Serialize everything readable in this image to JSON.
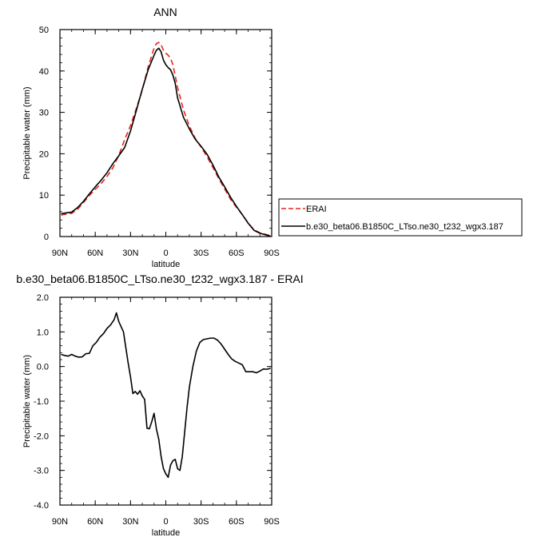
{
  "chart_data": [
    {
      "type": "line",
      "title": "ANN",
      "xlabel": "latitude",
      "ylabel": "Precipitable water (mm)",
      "x_tick_values": [
        90,
        60,
        30,
        0,
        -30,
        -60,
        -90
      ],
      "x_tick_labels": [
        "90N",
        "60N",
        "30N",
        "0",
        "30S",
        "60S",
        "90S"
      ],
      "xlim": [
        90,
        -90
      ],
      "ylim": [
        0,
        50
      ],
      "y_ticks": [
        0,
        10,
        20,
        30,
        40,
        50
      ],
      "y_tick_labels": [
        "0",
        "10",
        "20",
        "30",
        "40",
        "50"
      ],
      "grid": false,
      "legend_position": "right",
      "series": [
        {
          "name": "ERAI",
          "color": "#e8241c",
          "dash": "dashed",
          "x": [
            89,
            85,
            80,
            75,
            70,
            65,
            60,
            55,
            50,
            45,
            40,
            35,
            30,
            25,
            20,
            15,
            10,
            8,
            6,
            4,
            2,
            0,
            -2,
            -4,
            -6,
            -8,
            -10,
            -15,
            -20,
            -25,
            -30,
            -35,
            -40,
            -45,
            -50,
            -55,
            -60,
            -65,
            -70,
            -75,
            -80,
            -85,
            -89
          ],
          "y": [
            5.2,
            5.4,
            5.6,
            6.6,
            8.2,
            9.9,
            11.4,
            12.8,
            14.5,
            16.6,
            19.6,
            23.4,
            26.8,
            31.0,
            35.4,
            41.0,
            45.5,
            46.6,
            46.9,
            46.3,
            45.0,
            44.3,
            43.8,
            43.1,
            41.5,
            38.8,
            36.0,
            30.6,
            26.7,
            23.7,
            21.6,
            19.3,
            16.7,
            14.0,
            11.5,
            9.0,
            7.1,
            5.3,
            3.3,
            1.6,
            0.9,
            0.5,
            0.2
          ]
        },
        {
          "name": "b.e30_beta06.B1850C_LTso.ne30_t232_wgx3.187",
          "color": "#000000",
          "dash": "solid",
          "x": [
            89,
            85,
            80,
            75,
            70,
            65,
            60,
            55,
            50,
            45,
            40,
            35,
            30,
            25,
            20,
            15,
            10,
            8,
            6,
            4,
            2,
            0,
            -2,
            -4,
            -6,
            -8,
            -10,
            -15,
            -20,
            -25,
            -30,
            -35,
            -40,
            -45,
            -50,
            -55,
            -60,
            -65,
            -70,
            -75,
            -80,
            -85,
            -89
          ],
          "y": [
            5.5,
            5.7,
            5.9,
            7.0,
            8.5,
            10.3,
            12.0,
            13.6,
            15.4,
            17.6,
            19.5,
            21.5,
            25.5,
            30.5,
            35.6,
            40.3,
            43.8,
            45.0,
            45.5,
            44.6,
            42.6,
            41.5,
            40.8,
            40.3,
            39.0,
            37.0,
            33.5,
            28.8,
            26.0,
            23.5,
            21.8,
            19.9,
            17.3,
            14.4,
            12.0,
            9.5,
            7.3,
            5.3,
            3.2,
            1.5,
            0.8,
            0.4,
            0.1
          ]
        }
      ]
    },
    {
      "type": "line",
      "title": "b.e30_beta06.B1850C_LTso.ne30_t232_wgx3.187 - ERAI",
      "xlabel": "latitude",
      "ylabel": "Precipitable water (mm)",
      "x_tick_values": [
        90,
        60,
        30,
        0,
        -30,
        -60,
        -90
      ],
      "x_tick_labels": [
        "90N",
        "60N",
        "30N",
        "0",
        "30S",
        "60S",
        "90S"
      ],
      "xlim": [
        90,
        -90
      ],
      "ylim": [
        -4.0,
        2.0
      ],
      "y_ticks": [
        -4,
        -3,
        -2,
        -1,
        0,
        1,
        2
      ],
      "y_tick_labels": [
        "-4.0",
        "-3.0",
        "-2.0",
        "-1.0",
        "0.0",
        "1.0",
        "2.0"
      ],
      "grid": false,
      "series": [
        {
          "color": "#000000",
          "dash": "solid",
          "x": [
            89,
            86,
            83,
            80,
            77,
            74,
            71,
            68,
            65,
            62,
            59,
            56,
            53,
            50,
            47,
            44,
            42,
            40,
            38,
            36,
            34,
            32,
            30,
            28,
            26,
            24,
            22,
            20,
            18,
            16,
            14,
            12,
            10,
            8,
            6,
            4,
            2,
            0,
            -2,
            -4,
            -6,
            -8,
            -10,
            -12,
            -14,
            -16,
            -18,
            -20,
            -23,
            -26,
            -29,
            -32,
            -35,
            -38,
            -41,
            -44,
            -47,
            -50,
            -53,
            -56,
            -59,
            -62,
            -65,
            -68,
            -71,
            -74,
            -77,
            -80,
            -83,
            -86,
            -89
          ],
          "y": [
            0.35,
            0.32,
            0.3,
            0.35,
            0.3,
            0.27,
            0.28,
            0.37,
            0.38,
            0.6,
            0.7,
            0.85,
            0.95,
            1.1,
            1.2,
            1.35,
            1.55,
            1.3,
            1.15,
            1.0,
            0.55,
            0.1,
            -0.3,
            -0.78,
            -0.72,
            -0.8,
            -0.7,
            -0.85,
            -0.95,
            -1.78,
            -1.8,
            -1.6,
            -1.35,
            -1.8,
            -2.1,
            -2.6,
            -2.95,
            -3.1,
            -3.2,
            -2.85,
            -2.72,
            -2.68,
            -2.95,
            -3.0,
            -2.6,
            -1.9,
            -1.2,
            -0.6,
            0.0,
            0.45,
            0.7,
            0.78,
            0.8,
            0.82,
            0.82,
            0.76,
            0.65,
            0.5,
            0.35,
            0.22,
            0.15,
            0.1,
            0.05,
            -0.15,
            -0.15,
            -0.15,
            -0.18,
            -0.13,
            -0.07,
            -0.08,
            -0.05
          ]
        }
      ]
    }
  ],
  "legend": {
    "entries": [
      {
        "label": "ERAI",
        "color": "#e8241c",
        "dash": "dashed"
      },
      {
        "label": "b.e30_beta06.B1850C_LTso.ne30_t232_wgx3.187",
        "color": "#000000",
        "dash": "solid"
      }
    ]
  }
}
